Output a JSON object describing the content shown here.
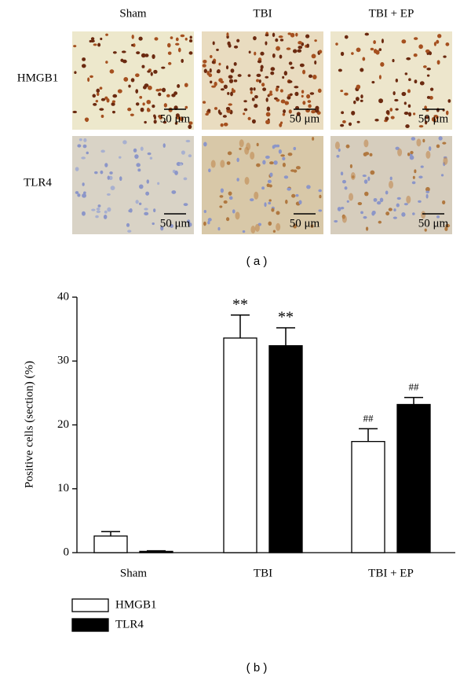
{
  "panel_a": {
    "columns": [
      "Sham",
      "TBI",
      "TBI + EP"
    ],
    "rows": [
      "HMGB1",
      "TLR4"
    ],
    "scale_bars": [
      "50 μm",
      "50 μm",
      "50 μm",
      "50 μm",
      "50 μm",
      "50 μm"
    ],
    "label": "( a )"
  },
  "chart_data": {
    "type": "bar",
    "ylabel": "Positive cells (section) (%)",
    "categories": [
      "Sham",
      "TBI",
      "TBI + EP"
    ],
    "series": [
      {
        "name": "HMGB1",
        "color": "#ffffff",
        "values": [
          2.6,
          33.6,
          17.4
        ],
        "errors": [
          0.7,
          3.6,
          2.0
        ],
        "significance": [
          null,
          "**",
          "##"
        ]
      },
      {
        "name": "TLR4",
        "color": "#000000",
        "values": [
          0.2,
          32.4,
          23.2
        ],
        "errors": [
          0.1,
          2.8,
          1.1
        ],
        "significance": [
          null,
          "**",
          "##"
        ]
      }
    ],
    "ylim": [
      0,
      40
    ],
    "yticks": [
      0,
      10,
      20,
      30,
      40
    ],
    "grid": false,
    "legend": "bottom-left"
  },
  "panel_b": {
    "label": "( b )"
  }
}
